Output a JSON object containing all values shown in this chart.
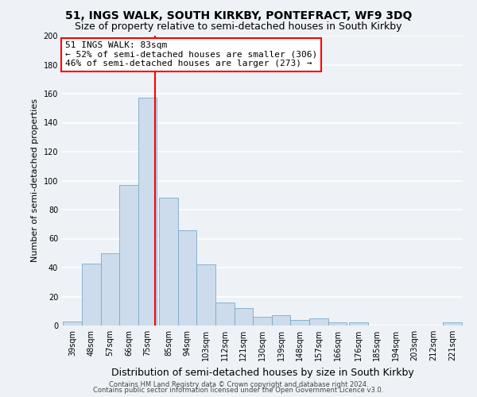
{
  "title": "51, INGS WALK, SOUTH KIRKBY, PONTEFRACT, WF9 3DQ",
  "subtitle": "Size of property relative to semi-detached houses in South Kirkby",
  "xlabel": "Distribution of semi-detached houses by size in South Kirkby",
  "ylabel": "Number of semi-detached properties",
  "bin_labels": [
    "39sqm",
    "48sqm",
    "57sqm",
    "66sqm",
    "75sqm",
    "85sqm",
    "94sqm",
    "103sqm",
    "112sqm",
    "121sqm",
    "130sqm",
    "139sqm",
    "148sqm",
    "157sqm",
    "166sqm",
    "176sqm",
    "185sqm",
    "194sqm",
    "203sqm",
    "212sqm",
    "221sqm"
  ],
  "bin_left_edges": [
    39,
    48,
    57,
    66,
    75,
    85,
    94,
    103,
    112,
    121,
    130,
    139,
    148,
    157,
    166,
    176,
    185,
    194,
    203,
    212,
    221
  ],
  "bin_width": 9,
  "heights": [
    3,
    43,
    50,
    97,
    157,
    88,
    66,
    42,
    16,
    12,
    6,
    7,
    4,
    5,
    2,
    2,
    0,
    0,
    0,
    0,
    2
  ],
  "bar_color": "#ccdcec",
  "bar_edge_color": "#7aaaca",
  "property_line_x": 83,
  "property_line_color": "red",
  "annotation_line1": "51 INGS WALK: 83sqm",
  "annotation_line2": "← 52% of semi-detached houses are smaller (306)",
  "annotation_line3": "46% of semi-detached houses are larger (273) →",
  "annotation_box_color": "white",
  "annotation_box_edge": "red",
  "ylim": [
    0,
    200
  ],
  "yticks": [
    0,
    20,
    40,
    60,
    80,
    100,
    120,
    140,
    160,
    180,
    200
  ],
  "footer1": "Contains HM Land Registry data © Crown copyright and database right 2024.",
  "footer2": "Contains public sector information licensed under the Open Government Licence v3.0.",
  "background_color": "#eef2f7",
  "grid_color": "#ffffff",
  "title_fontsize": 10,
  "subtitle_fontsize": 9,
  "annotation_fontsize": 8,
  "tick_fontsize": 7,
  "ylabel_fontsize": 8,
  "xlabel_fontsize": 9
}
